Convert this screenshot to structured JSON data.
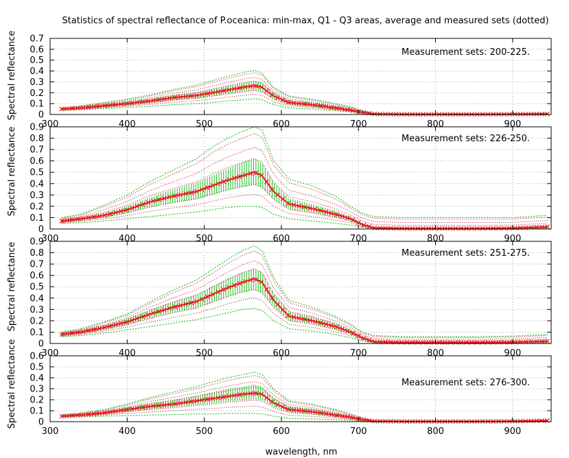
{
  "title": "Statistics of spectral reflectance of P.oceanica: min-max, Q1 - Q3 areas, average and measured sets (dotted)",
  "xlabel": "wavelength, nm",
  "chart_data": [
    {
      "type": "line",
      "ylabel": "Spectral reflectance",
      "annotation": "Measurement sets: 200-225.",
      "xlim": [
        300,
        950
      ],
      "ylim": [
        0,
        0.7
      ],
      "yticks": [
        0,
        0.1,
        0.2,
        0.3,
        0.4,
        0.5,
        0.6,
        0.7
      ],
      "xticks": [
        300,
        400,
        500,
        600,
        700,
        800,
        900
      ],
      "grid": true,
      "x": [
        315,
        340,
        370,
        400,
        430,
        460,
        490,
        510,
        530,
        550,
        565,
        575,
        590,
        610,
        640,
        670,
        690,
        705,
        720,
        760,
        800,
        850,
        900,
        945
      ],
      "series": [
        {
          "stat": "average",
          "values": [
            0.05,
            0.06,
            0.08,
            0.1,
            0.125,
            0.155,
            0.175,
            0.2,
            0.225,
            0.25,
            0.265,
            0.25,
            0.17,
            0.11,
            0.09,
            0.06,
            0.04,
            0.02,
            0.005,
            0.002,
            0.002,
            0.002,
            0.003,
            0.005
          ]
        },
        {
          "stat": "q1",
          "values": [
            0.045,
            0.055,
            0.07,
            0.085,
            0.105,
            0.13,
            0.145,
            0.165,
            0.185,
            0.21,
            0.22,
            0.205,
            0.14,
            0.09,
            0.07,
            0.05,
            0.03,
            0.015,
            0.004,
            0.001,
            0.001,
            0.001,
            0.002,
            0.004
          ]
        },
        {
          "stat": "q3",
          "values": [
            0.055,
            0.07,
            0.09,
            0.115,
            0.145,
            0.18,
            0.205,
            0.235,
            0.265,
            0.29,
            0.31,
            0.295,
            0.2,
            0.13,
            0.11,
            0.075,
            0.05,
            0.025,
            0.007,
            0.003,
            0.003,
            0.003,
            0.004,
            0.007
          ]
        },
        {
          "stat": "min",
          "values": [
            0.04,
            0.045,
            0.055,
            0.065,
            0.075,
            0.09,
            0.1,
            0.11,
            0.125,
            0.135,
            0.145,
            0.135,
            0.09,
            0.06,
            0.05,
            0.035,
            0.025,
            0.01,
            0.002,
            0.0,
            0.0,
            0.0,
            0.0,
            0.002
          ]
        },
        {
          "stat": "max",
          "values": [
            0.06,
            0.08,
            0.11,
            0.14,
            0.18,
            0.23,
            0.27,
            0.31,
            0.35,
            0.385,
            0.405,
            0.38,
            0.25,
            0.17,
            0.14,
            0.1,
            0.07,
            0.035,
            0.01,
            0.005,
            0.005,
            0.005,
            0.007,
            0.012
          ]
        }
      ]
    },
    {
      "type": "line",
      "ylabel": "Spectral reflectance",
      "annotation": "Measurement sets: 226-250.",
      "xlim": [
        300,
        950
      ],
      "ylim": [
        0,
        0.9
      ],
      "yticks": [
        0,
        0.1,
        0.2,
        0.3,
        0.4,
        0.5,
        0.6,
        0.7,
        0.8,
        0.9
      ],
      "xticks": [
        300,
        400,
        500,
        600,
        700,
        800,
        900
      ],
      "grid": true,
      "x": [
        315,
        340,
        370,
        400,
        430,
        460,
        490,
        510,
        530,
        550,
        565,
        575,
        590,
        610,
        640,
        670,
        690,
        705,
        720,
        760,
        800,
        850,
        900,
        945
      ],
      "series": [
        {
          "stat": "average",
          "values": [
            0.07,
            0.09,
            0.12,
            0.17,
            0.24,
            0.29,
            0.33,
            0.38,
            0.43,
            0.47,
            0.5,
            0.47,
            0.33,
            0.22,
            0.18,
            0.13,
            0.09,
            0.04,
            0.01,
            0.005,
            0.005,
            0.005,
            0.008,
            0.02
          ]
        },
        {
          "stat": "q1",
          "values": [
            0.06,
            0.075,
            0.1,
            0.14,
            0.19,
            0.23,
            0.26,
            0.3,
            0.34,
            0.37,
            0.39,
            0.36,
            0.26,
            0.17,
            0.14,
            0.1,
            0.07,
            0.03,
            0.008,
            0.004,
            0.004,
            0.004,
            0.006,
            0.015
          ]
        },
        {
          "stat": "q3",
          "values": [
            0.08,
            0.1,
            0.14,
            0.2,
            0.28,
            0.35,
            0.41,
            0.47,
            0.53,
            0.59,
            0.62,
            0.58,
            0.41,
            0.27,
            0.22,
            0.16,
            0.11,
            0.05,
            0.015,
            0.008,
            0.008,
            0.008,
            0.01,
            0.025
          ]
        },
        {
          "stat": "min",
          "values": [
            0.05,
            0.055,
            0.07,
            0.09,
            0.11,
            0.13,
            0.15,
            0.17,
            0.19,
            0.2,
            0.2,
            0.19,
            0.13,
            0.09,
            0.07,
            0.05,
            0.035,
            0.015,
            0.003,
            0.002,
            0.002,
            0.002,
            0.003,
            0.008
          ]
        },
        {
          "stat": "max",
          "values": [
            0.1,
            0.13,
            0.21,
            0.3,
            0.42,
            0.52,
            0.62,
            0.72,
            0.8,
            0.86,
            0.9,
            0.87,
            0.6,
            0.44,
            0.38,
            0.29,
            0.2,
            0.14,
            0.11,
            0.1,
            0.1,
            0.1,
            0.1,
            0.12
          ]
        }
      ]
    },
    {
      "type": "line",
      "ylabel": "Spectral reflectance",
      "annotation": "Measurement sets: 251-275.",
      "xlim": [
        300,
        950
      ],
      "ylim": [
        0,
        0.9
      ],
      "yticks": [
        0,
        0.1,
        0.2,
        0.3,
        0.4,
        0.5,
        0.6,
        0.7,
        0.8,
        0.9
      ],
      "xticks": [
        300,
        400,
        500,
        600,
        700,
        800,
        900
      ],
      "grid": true,
      "x": [
        315,
        340,
        370,
        400,
        430,
        460,
        490,
        510,
        530,
        550,
        565,
        575,
        590,
        610,
        640,
        670,
        690,
        705,
        720,
        760,
        800,
        850,
        900,
        945
      ],
      "series": [
        {
          "stat": "average",
          "values": [
            0.08,
            0.1,
            0.14,
            0.19,
            0.26,
            0.32,
            0.37,
            0.43,
            0.49,
            0.54,
            0.57,
            0.54,
            0.38,
            0.24,
            0.2,
            0.15,
            0.1,
            0.05,
            0.015,
            0.01,
            0.01,
            0.01,
            0.012,
            0.02
          ]
        },
        {
          "stat": "q1",
          "values": [
            0.07,
            0.09,
            0.12,
            0.16,
            0.22,
            0.27,
            0.31,
            0.36,
            0.41,
            0.45,
            0.47,
            0.44,
            0.32,
            0.2,
            0.17,
            0.12,
            0.08,
            0.04,
            0.012,
            0.008,
            0.008,
            0.008,
            0.01,
            0.016
          ]
        },
        {
          "stat": "q3",
          "values": [
            0.09,
            0.12,
            0.16,
            0.22,
            0.3,
            0.37,
            0.43,
            0.5,
            0.57,
            0.63,
            0.66,
            0.63,
            0.44,
            0.28,
            0.24,
            0.18,
            0.12,
            0.06,
            0.02,
            0.012,
            0.012,
            0.012,
            0.015,
            0.025
          ]
        },
        {
          "stat": "min",
          "values": [
            0.06,
            0.07,
            0.09,
            0.12,
            0.15,
            0.18,
            0.21,
            0.24,
            0.27,
            0.3,
            0.31,
            0.29,
            0.2,
            0.13,
            0.11,
            0.08,
            0.05,
            0.025,
            0.006,
            0.004,
            0.004,
            0.004,
            0.005,
            0.01
          ]
        },
        {
          "stat": "max",
          "values": [
            0.1,
            0.13,
            0.19,
            0.26,
            0.37,
            0.47,
            0.56,
            0.65,
            0.74,
            0.82,
            0.86,
            0.82,
            0.58,
            0.38,
            0.32,
            0.24,
            0.17,
            0.1,
            0.07,
            0.06,
            0.06,
            0.06,
            0.065,
            0.08
          ]
        }
      ]
    },
    {
      "type": "line",
      "ylabel": "Spectral reflectance",
      "annotation": "Measurement sets: 276-300.",
      "xlim": [
        300,
        950
      ],
      "ylim": [
        0,
        0.6
      ],
      "yticks": [
        0,
        0.1,
        0.2,
        0.3,
        0.4,
        0.5,
        0.6
      ],
      "xticks": [
        300,
        400,
        500,
        600,
        700,
        800,
        900
      ],
      "grid": true,
      "x": [
        315,
        340,
        370,
        400,
        430,
        460,
        490,
        510,
        530,
        550,
        565,
        575,
        590,
        610,
        640,
        670,
        690,
        705,
        720,
        760,
        800,
        850,
        900,
        945
      ],
      "series": [
        {
          "stat": "average",
          "values": [
            0.05,
            0.06,
            0.08,
            0.11,
            0.14,
            0.16,
            0.19,
            0.21,
            0.23,
            0.25,
            0.26,
            0.25,
            0.17,
            0.11,
            0.09,
            0.06,
            0.04,
            0.02,
            0.005,
            0.002,
            0.002,
            0.002,
            0.004,
            0.01
          ]
        },
        {
          "stat": "q1",
          "values": [
            0.045,
            0.055,
            0.07,
            0.09,
            0.11,
            0.13,
            0.15,
            0.165,
            0.18,
            0.195,
            0.205,
            0.195,
            0.135,
            0.085,
            0.07,
            0.045,
            0.03,
            0.015,
            0.004,
            0.001,
            0.001,
            0.001,
            0.003,
            0.008
          ]
        },
        {
          "stat": "q3",
          "values": [
            0.055,
            0.07,
            0.09,
            0.13,
            0.17,
            0.2,
            0.24,
            0.27,
            0.3,
            0.32,
            0.34,
            0.32,
            0.22,
            0.14,
            0.12,
            0.08,
            0.05,
            0.025,
            0.007,
            0.003,
            0.003,
            0.003,
            0.005,
            0.012
          ]
        },
        {
          "stat": "min",
          "values": [
            0.04,
            0.045,
            0.05,
            0.055,
            0.06,
            0.065,
            0.07,
            0.07,
            0.075,
            0.075,
            0.075,
            0.07,
            0.05,
            0.03,
            0.025,
            0.02,
            0.012,
            0.006,
            0.002,
            0.0,
            0.0,
            0.0,
            0.001,
            0.004
          ]
        },
        {
          "stat": "max",
          "values": [
            0.06,
            0.08,
            0.11,
            0.16,
            0.22,
            0.27,
            0.32,
            0.36,
            0.4,
            0.43,
            0.45,
            0.43,
            0.3,
            0.19,
            0.16,
            0.11,
            0.07,
            0.035,
            0.01,
            0.005,
            0.005,
            0.005,
            0.007,
            0.015
          ]
        }
      ]
    }
  ],
  "colors": {
    "average": "#e8191e",
    "average_marker": "#e8191e",
    "iqr_bars": "#22c122",
    "minmax": "#22c122",
    "measured_dotted": "#b01030",
    "grid": "#a0a0a0",
    "axis": "#000000"
  }
}
